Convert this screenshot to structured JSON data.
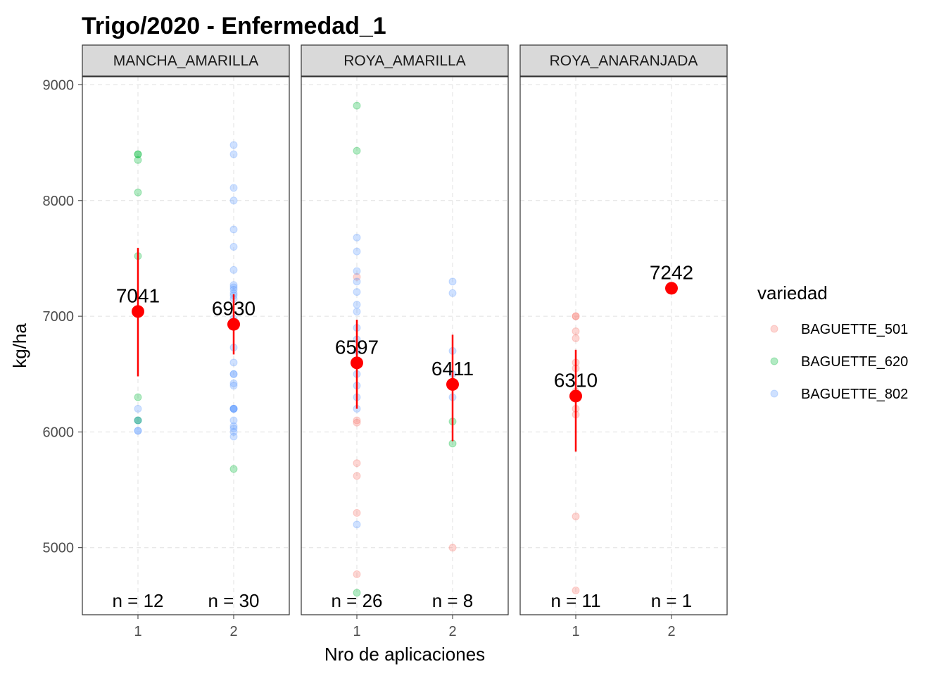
{
  "chart_data": {
    "type": "scatter",
    "title": "Trigo/2020 - Enfermedad_1",
    "xlabel": "Nro de aplicaciones",
    "ylabel": "kg/ha",
    "ylim": [
      4420,
      9070
    ],
    "yticks": [
      5000,
      6000,
      7000,
      8000,
      9000
    ],
    "x_categories": [
      "1",
      "2"
    ],
    "grid": true,
    "legend": {
      "title": "variedad",
      "position": "right",
      "entries": [
        {
          "name": "BAGUETTE_501",
          "color": "#F8766D"
        },
        {
          "name": "BAGUETTE_620",
          "color": "#00BA38"
        },
        {
          "name": "BAGUETTE_802",
          "color": "#619CFF"
        }
      ]
    },
    "summary_color": "#FF0000",
    "panels": [
      {
        "name": "MANCHA_AMARILLA",
        "groups": [
          {
            "x": "1",
            "mean": 7041,
            "mean_label": "7041",
            "ci": [
              6480,
              7590
            ],
            "n_label": "n = 12",
            "points": {
              "BAGUETTE_620": [
                8400,
                8400,
                8350,
                8070,
                7520,
                6300,
                6100,
                6100
              ],
              "BAGUETTE_802": [
                6200,
                6010,
                6010,
                6100
              ]
            }
          },
          {
            "x": "2",
            "mean": 6930,
            "mean_label": "6930",
            "ci": [
              6670,
              7190
            ],
            "n_label": "n = 30",
            "points": {
              "BAGUETTE_620": [
                5680
              ],
              "BAGUETTE_802": [
                8480,
                8400,
                8110,
                8000,
                7750,
                7600,
                7400,
                7270,
                7250,
                7230,
                7200,
                7180,
                7150,
                6980,
                6730,
                6600,
                6500,
                6500,
                6420,
                6400,
                6200,
                6200,
                6200,
                6100,
                6050,
                6030,
                6000,
                5960,
                6200
              ]
            }
          }
        ]
      },
      {
        "name": "ROYA_AMARILLA",
        "groups": [
          {
            "x": "1",
            "mean": 6597,
            "mean_label": "6597",
            "ci": [
              6200,
              6970
            ],
            "n_label": "n = 26",
            "points": {
              "BAGUETTE_501": [
                7340,
                6100,
                6080,
                5730,
                5620,
                5300,
                4770
              ],
              "BAGUETTE_620": [
                8820,
                8430,
                4610
              ],
              "BAGUETTE_802": [
                7680,
                7560,
                7390,
                7300,
                7210,
                7040,
                6900,
                6700,
                6500,
                6300,
                6200,
                5200,
                6600,
                6400,
                6800,
                7100
              ]
            }
          },
          {
            "x": "2",
            "mean": 6411,
            "mean_label": "6411",
            "ci": [
              5920,
              6840
            ],
            "n_label": "n = 8",
            "points": {
              "BAGUETTE_501": [
                5000
              ],
              "BAGUETTE_620": [
                6090,
                5900
              ],
              "BAGUETTE_802": [
                7300,
                7200,
                6700,
                6500,
                6300
              ]
            }
          }
        ]
      },
      {
        "name": "ROYA_ANARANJADA",
        "groups": [
          {
            "x": "1",
            "mean": 6310,
            "mean_label": "6310",
            "ci": [
              5830,
              6710
            ],
            "n_label": "n = 11",
            "points": {
              "BAGUETTE_501": [
                7000,
                7000,
                6870,
                6810,
                6600,
                6550,
                6200,
                6150,
                5270,
                4630,
                6350
              ]
            }
          },
          {
            "x": "2",
            "mean": 7242,
            "mean_label": "7242",
            "ci": [
              7242,
              7242
            ],
            "n_label": "n = 1",
            "points": {
              "BAGUETTE_501": [
                7242
              ]
            }
          }
        ]
      }
    ]
  }
}
